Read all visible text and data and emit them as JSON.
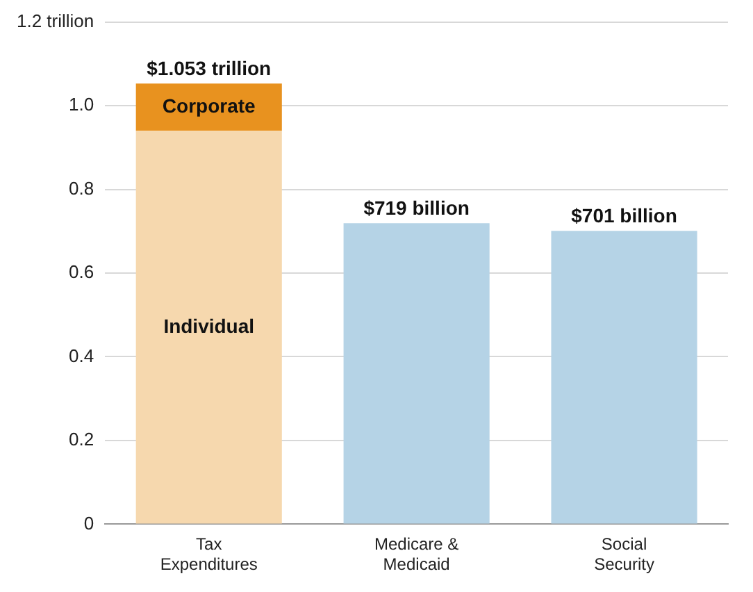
{
  "chart_data": {
    "type": "bar",
    "stacked": true,
    "categories": [
      "Tax Expenditures",
      "Medicare & Medicaid",
      "Social Security"
    ],
    "series": [
      {
        "name": "Individual",
        "color": "#f6d8ae",
        "values": [
          0.94,
          null,
          null
        ]
      },
      {
        "name": "Corporate",
        "color": "#e8921f",
        "values": [
          0.113,
          null,
          null
        ]
      },
      {
        "color": "#b5d3e6",
        "values": [
          null,
          0.719,
          0.701
        ]
      }
    ],
    "totals": [
      "$1.053 trillion",
      null,
      null
    ],
    "annotations": [
      {
        "text": "$719 billion",
        "x": "Medicare & Medicaid",
        "y": 0.719
      },
      {
        "text": "$701 billion",
        "x": "Social Security",
        "y": 0.701
      }
    ],
    "ylim": [
      0,
      1.2
    ],
    "yticks": [
      0,
      0.2,
      0.4,
      0.6,
      0.8,
      {
        "value": 1,
        "label": "1.0"
      },
      {
        "value": 1.2,
        "label": "1.2 trillion"
      }
    ],
    "grid": "y",
    "legend": false
  }
}
